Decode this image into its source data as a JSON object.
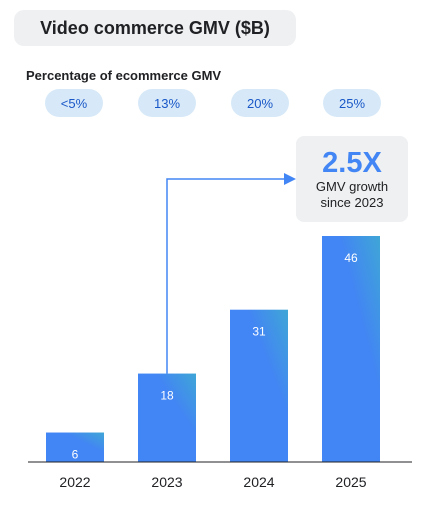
{
  "title": "Video commerce GMV ($B)",
  "subtitle": "Percentage of ecommerce GMV",
  "percentages": [
    "<5%",
    "13%",
    "20%",
    "25%"
  ],
  "callout": {
    "value": "2.5X",
    "line1": "GMV growth",
    "line2": "since 2023"
  },
  "colors": {
    "bar_bottom": "#4285f4",
    "bar_top": "#3fa6d6",
    "accent": "#4285f4",
    "badge_bg": "#d7e9f8",
    "badge_text": "#1a58c8"
  },
  "chart_data": {
    "type": "bar",
    "title": "Video commerce GMV ($B)",
    "categories": [
      "2022",
      "2023",
      "2024",
      "2025"
    ],
    "values": [
      6,
      18,
      31,
      46
    ],
    "xlabel": "",
    "ylabel": "",
    "ylim": [
      0,
      50
    ],
    "grid": false
  }
}
